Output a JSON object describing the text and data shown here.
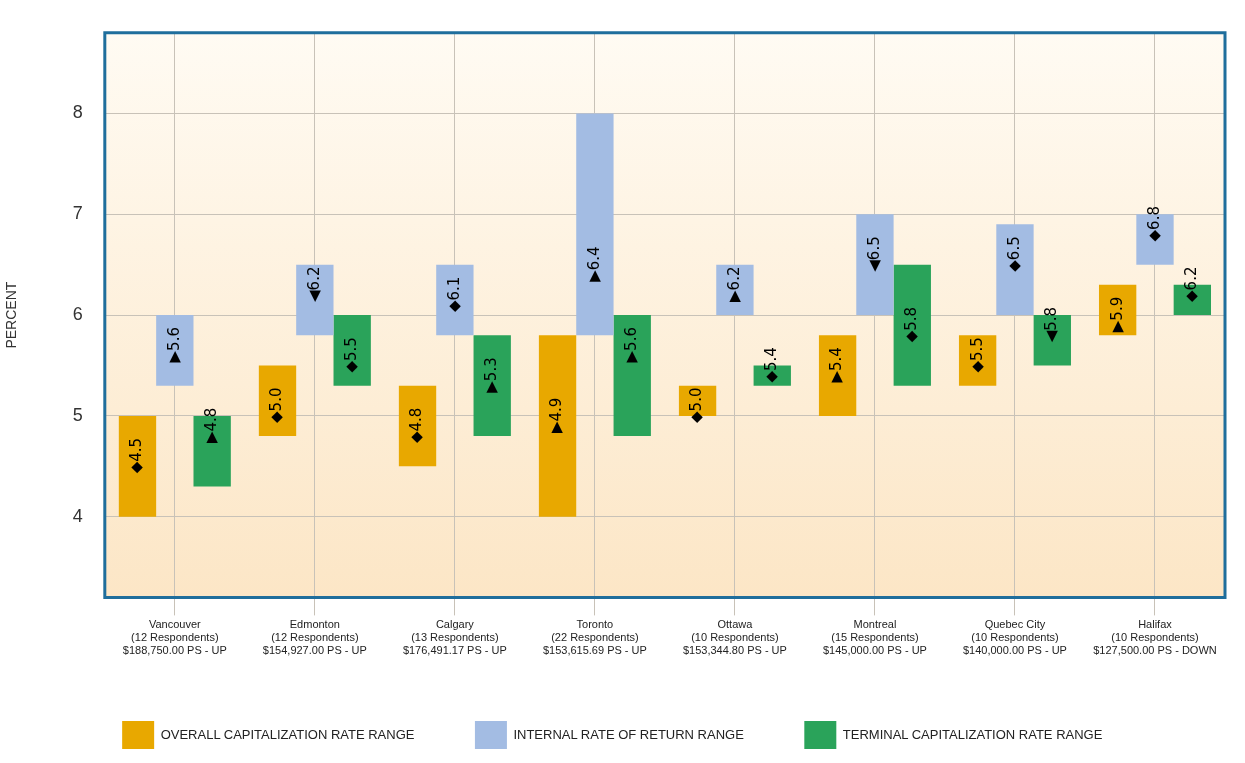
{
  "chart_data": {
    "type": "bar",
    "ylabel": "PERCENT",
    "categories": [
      "Vancouver\n(12 Respondents)\n$188,750.00 PS - UP",
      "Edmonton\n(12 Respondents)\n$154,927.00 PS - UP",
      "Calgary\n(13 Respondents)\n$176,491.17 PS - UP",
      "Toronto\n(22 Respondents)\n$153,615.69 PS - UP",
      "Ottawa\n(10 Respondents)\n$153,344.80 PS - UP",
      "Montreal\n(15 Respondents)\n$145,000.00 PS - UP",
      "Quebec City\n(10 Respondents)\n$140,000.00 PS - UP",
      "Halifax\n(10 Respondents)\n$127,500.00 PS - DOWN"
    ],
    "ylim": [
      3.2,
      8.8
    ],
    "yticks": [
      4,
      5,
      6,
      7,
      8
    ],
    "grid": true,
    "legend": "bottom",
    "series": [
      {
        "name": "OVERALL CAPITALIZATION RATE RANGE",
        "color": "#e8a800",
        "base": [
          4.0,
          4.8,
          4.5,
          4.0,
          5.0,
          5.0,
          5.3,
          5.8
        ],
        "values": [
          1.0,
          0.7,
          0.8,
          1.8,
          0.3,
          0.8,
          0.5,
          0.5
        ]
      },
      {
        "name": "INTERNAL RATE OF RETURN RANGE",
        "color": "#a3bce3",
        "base": [
          5.3,
          5.8,
          5.8,
          5.8,
          6.0,
          6.0,
          6.0,
          6.5
        ],
        "values": [
          0.7,
          0.7,
          0.7,
          2.2,
          0.5,
          1.0,
          0.9,
          0.5
        ]
      },
      {
        "name": "TERMINAL CAPITALIZATION RATE RANGE",
        "color": "#2aa35a",
        "base": [
          4.3,
          5.3,
          4.8,
          4.8,
          5.3,
          5.3,
          5.5,
          6.0
        ],
        "values": [
          0.7,
          0.7,
          1.0,
          1.2,
          0.2,
          1.2,
          0.5,
          0.3
        ]
      }
    ],
    "annotations": [
      "◆4.5",
      "▶5.6",
      "▶4.8",
      "◆5.0",
      "◀6.2",
      "◆5.5",
      "◆4.8",
      "◆6.1",
      "▶5.3",
      "▶4.9",
      "▶6.4",
      "▶5.6",
      "◆5.0",
      "▶6.2",
      "◆5.4",
      "▶5.4",
      "◀6.5",
      "◆5.8",
      "◆5.5",
      "◆6.5",
      "◀5.8",
      "▶5.9",
      "◆6.8",
      "◆6.2"
    ]
  }
}
